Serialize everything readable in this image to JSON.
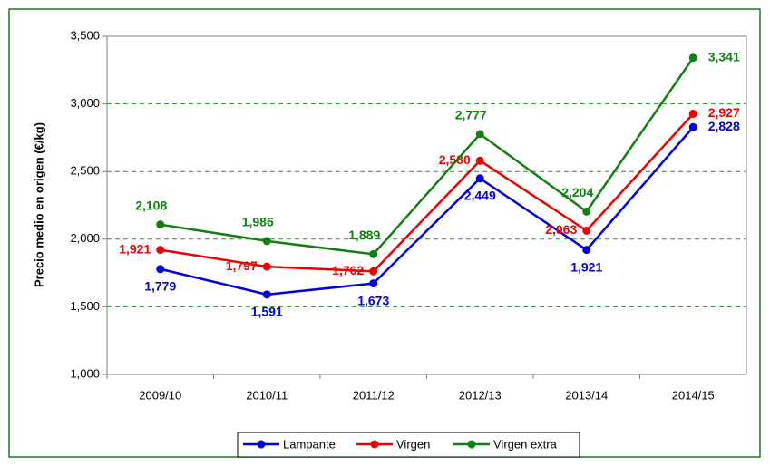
{
  "chart_data": {
    "type": "line",
    "ylabel": "Precio medio en origen (€/kg)",
    "categories": [
      "2009/10",
      "2010/11",
      "2011/12",
      "2012/13",
      "2013/14",
      "2014/15"
    ],
    "series": [
      {
        "name": "Lampante",
        "color": "#0000e0",
        "values": [
          1779,
          1591,
          1673,
          2449,
          1921,
          2828
        ],
        "value_labels": [
          "1,779",
          "1,591",
          "1,673",
          "2,449",
          "1,921",
          "2,828"
        ]
      },
      {
        "name": "Virgen",
        "color": "#ee0000",
        "values": [
          1921,
          1797,
          1762,
          2580,
          2063,
          2927
        ],
        "value_labels": [
          "1,921",
          "1,797",
          "1,762",
          "2,580",
          "2,063",
          "2,927"
        ]
      },
      {
        "name": "Virgen extra",
        "color": "#108010",
        "values": [
          2108,
          1986,
          1889,
          2777,
          2204,
          3341
        ],
        "value_labels": [
          "2,108",
          "1,986",
          "1,889",
          "2,777",
          "2,204",
          "3,341"
        ]
      }
    ],
    "ylim": [
      1000,
      3500
    ],
    "yticks": [
      {
        "value": 1000,
        "label": "1,000"
      },
      {
        "value": 1500,
        "label": "1,500"
      },
      {
        "value": 2000,
        "label": "2,000"
      },
      {
        "value": 2500,
        "label": "2,500"
      },
      {
        "value": 3000,
        "label": "3,000"
      },
      {
        "value": 3500,
        "label": "3,500"
      }
    ],
    "grid": true,
    "legend": "bottom"
  }
}
